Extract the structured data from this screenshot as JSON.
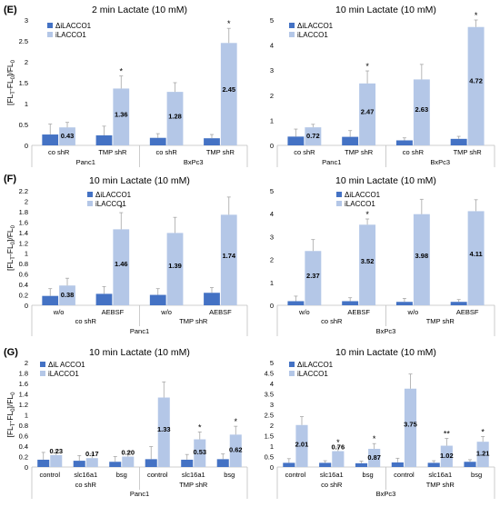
{
  "colors": {
    "delta": "#4472c4",
    "full": "#b4c7e7",
    "error": "#a6a6a6",
    "text": "#000000"
  },
  "panel_letters": [
    "(E)",
    "(F)",
    "(G)"
  ],
  "chart_data": [
    {
      "type": "bar",
      "title": "2 min Lactate (10 mM)",
      "ylabel_main": "[FL",
      "ylabel_sub1": "T",
      "ylabel_mid": "-FL",
      "ylabel_sub2": "0",
      "ylabel_tail": "]/FL",
      "ylabel_sub3": "0",
      "ylim": [
        0,
        3
      ],
      "yticks": [
        "0",
        "0.5",
        "1",
        "1.5",
        "2",
        "2.5",
        "3"
      ],
      "legend": [
        "ΔiLACCO1",
        "iLACCO1"
      ],
      "categories": [
        "co shR",
        "TMP shR",
        "co shR",
        "TMP shR"
      ],
      "groups": [
        {
          "label": "Panc1",
          "span": [
            0,
            1
          ]
        },
        {
          "label": "BxPc3",
          "span": [
            2,
            3
          ]
        }
      ],
      "series": [
        {
          "name": "ΔiLACCO1",
          "values": [
            0.26,
            0.24,
            0.18,
            0.17
          ],
          "errors": [
            0.25,
            0.22,
            0.1,
            0.09
          ]
        },
        {
          "name": "iLACCO1",
          "values": [
            0.43,
            1.36,
            1.28,
            2.45
          ],
          "errors": [
            0.12,
            0.3,
            0.22,
            0.35
          ]
        }
      ],
      "data_labels": [
        "0.43",
        "1.36",
        "1.28",
        "2.45"
      ],
      "stars": [
        "",
        "*",
        "",
        "*"
      ]
    },
    {
      "type": "bar",
      "title": "10 min Lactate (10 mM)",
      "ylim": [
        0,
        5
      ],
      "yticks": [
        "0",
        "1",
        "2",
        "3",
        "4",
        "5"
      ],
      "legend": [
        "ΔiLACCO1",
        "iLACCO1"
      ],
      "categories": [
        "co shR",
        "TMP shR",
        "co shR",
        "TMP shR"
      ],
      "groups": [
        {
          "label": "Panc1",
          "span": [
            0,
            1
          ]
        },
        {
          "label": "BxPc3",
          "span": [
            2,
            3
          ]
        }
      ],
      "series": [
        {
          "name": "ΔiLACCO1",
          "values": [
            0.35,
            0.34,
            0.2,
            0.26
          ],
          "errors": [
            0.3,
            0.25,
            0.1,
            0.1
          ]
        },
        {
          "name": "iLACCO1",
          "values": [
            0.72,
            2.47,
            2.63,
            4.72
          ],
          "errors": [
            0.12,
            0.5,
            0.6,
            0.6
          ]
        }
      ],
      "data_labels": [
        "0.72",
        "2.47",
        "2.63",
        "4.72"
      ],
      "stars": [
        "",
        "*",
        "",
        "*"
      ]
    },
    {
      "type": "bar",
      "title": "10 min Lactate (10 mM)",
      "ylabel_main": "[FL",
      "ylabel_sub1": "T",
      "ylabel_mid": "-FL",
      "ylabel_sub2": "0",
      "ylabel_tail": "]/FL",
      "ylabel_sub3": "0",
      "ylim": [
        0,
        2.2
      ],
      "yticks": [
        "0",
        "0.2",
        "0.4",
        "0.6",
        "0.8",
        "1",
        "1.2",
        "1.4",
        "1.6",
        "1.8",
        "2",
        "2.2"
      ],
      "legend": [
        "ΔiLACCO1",
        "iLACCO1"
      ],
      "categories": [
        "w/o",
        "AEBSF",
        "w/o",
        "AEBSF"
      ],
      "groups": [
        {
          "label": "co shR",
          "span": [
            0,
            1
          ]
        },
        {
          "label": "TMP shR",
          "span": [
            2,
            3
          ]
        }
      ],
      "super_group": "Panc1",
      "series": [
        {
          "name": "ΔiLACCO1",
          "values": [
            0.18,
            0.22,
            0.2,
            0.24
          ],
          "errors": [
            0.14,
            0.14,
            0.12,
            0.1
          ]
        },
        {
          "name": "iLACCO1",
          "values": [
            0.38,
            1.46,
            1.39,
            1.74
          ],
          "errors": [
            0.14,
            0.32,
            0.3,
            0.34
          ]
        }
      ],
      "data_labels": [
        "0.38",
        "1.46",
        "1.39",
        "1.74"
      ],
      "stars": [
        "",
        "*",
        "",
        ""
      ]
    },
    {
      "type": "bar",
      "title": "10 min Lactate (10 mM)",
      "ylim": [
        0,
        5
      ],
      "yticks": [
        "0",
        "1",
        "2",
        "3",
        "4",
        "5"
      ],
      "legend": [
        "ΔiLACCO1",
        "iLACCO1"
      ],
      "categories": [
        "w/o",
        "AEBSF",
        "w/o",
        "AEBSF"
      ],
      "groups": [
        {
          "label": "co shR",
          "span": [
            0,
            1
          ]
        },
        {
          "label": "TMP shR",
          "span": [
            2,
            3
          ]
        }
      ],
      "super_group": "BxPc3",
      "series": [
        {
          "name": "ΔiLACCO1",
          "values": [
            0.18,
            0.18,
            0.15,
            0.15
          ],
          "errors": [
            0.22,
            0.15,
            0.15,
            0.1
          ]
        },
        {
          "name": "iLACCO1",
          "values": [
            2.37,
            3.52,
            3.98,
            4.11
          ],
          "errors": [
            0.5,
            0.25,
            0.65,
            0.5
          ]
        }
      ],
      "data_labels": [
        "2.37",
        "3.52",
        "3.98",
        "4.11"
      ],
      "stars": [
        "",
        "*",
        "",
        ""
      ]
    },
    {
      "type": "bar",
      "title": "10 min Lactate (10 mM)",
      "ylabel_main": "[FL",
      "ylabel_sub1": "T",
      "ylabel_mid": "-FL",
      "ylabel_sub2": "0",
      "ylabel_tail": "]/FL",
      "ylabel_sub3": "0",
      "ylim": [
        0,
        2
      ],
      "yticks": [
        "0",
        "0.2",
        "0.4",
        "0.6",
        "0.8",
        "1",
        "1.2",
        "1.4",
        "1.6",
        "1.8",
        "2"
      ],
      "legend": [
        "ΔiL ACCO1",
        "iLACCO1"
      ],
      "categories": [
        "control",
        "slc16a1",
        "bsg",
        "control",
        "slc16a1",
        "bsg"
      ],
      "groups": [
        {
          "label": "co shR",
          "span": [
            0,
            2
          ]
        },
        {
          "label": "TMP shR",
          "span": [
            3,
            5
          ]
        }
      ],
      "super_group": "Panc1",
      "series": [
        {
          "name": "ΔiL ACCO1",
          "values": [
            0.14,
            0.12,
            0.1,
            0.15,
            0.14,
            0.15
          ],
          "errors": [
            0.14,
            0.1,
            0.1,
            0.24,
            0.1,
            0.1
          ]
        },
        {
          "name": "iLACCO1",
          "values": [
            0.23,
            0.17,
            0.2,
            1.33,
            0.53,
            0.62
          ],
          "errors": [
            0.1,
            0.08,
            0.1,
            0.3,
            0.14,
            0.16
          ]
        }
      ],
      "data_labels": [
        "0.23",
        "0.17",
        "0.20",
        "1.33",
        "0.53",
        "0.62"
      ],
      "stars": [
        "",
        "",
        "",
        "",
        "*",
        "*"
      ]
    },
    {
      "type": "bar",
      "title": "10 min Lactate (10 mM)",
      "ylim": [
        0,
        5
      ],
      "yticks": [
        "0",
        "0.5",
        "1",
        "1.5",
        "2",
        "2.5",
        "3",
        "3.5",
        "4",
        "4.5",
        "5"
      ],
      "legend": [
        "ΔiLACCO1",
        "iLACCO1"
      ],
      "categories": [
        "control",
        "slc16a1",
        "bsg",
        "control",
        "slc16a1",
        "bsg"
      ],
      "groups": [
        {
          "label": "co shR",
          "span": [
            0,
            2
          ]
        },
        {
          "label": "TMP shR",
          "span": [
            3,
            5
          ]
        }
      ],
      "super_group": "BxPc3",
      "series": [
        {
          "name": "ΔiLACCO1",
          "values": [
            0.2,
            0.2,
            0.18,
            0.22,
            0.2,
            0.25
          ],
          "errors": [
            0.2,
            0.1,
            0.1,
            0.2,
            0.1,
            0.1
          ]
        },
        {
          "name": "iLACCO1",
          "values": [
            2.01,
            0.76,
            0.87,
            3.75,
            1.02,
            1.21
          ],
          "errors": [
            0.4,
            0.2,
            0.25,
            0.7,
            0.35,
            0.25
          ]
        }
      ],
      "data_labels": [
        "2.01",
        "0.76",
        "0.87",
        "3.75",
        "1.02",
        "1.21"
      ],
      "stars": [
        "",
        "*",
        "*",
        "",
        "**",
        "*"
      ]
    }
  ]
}
